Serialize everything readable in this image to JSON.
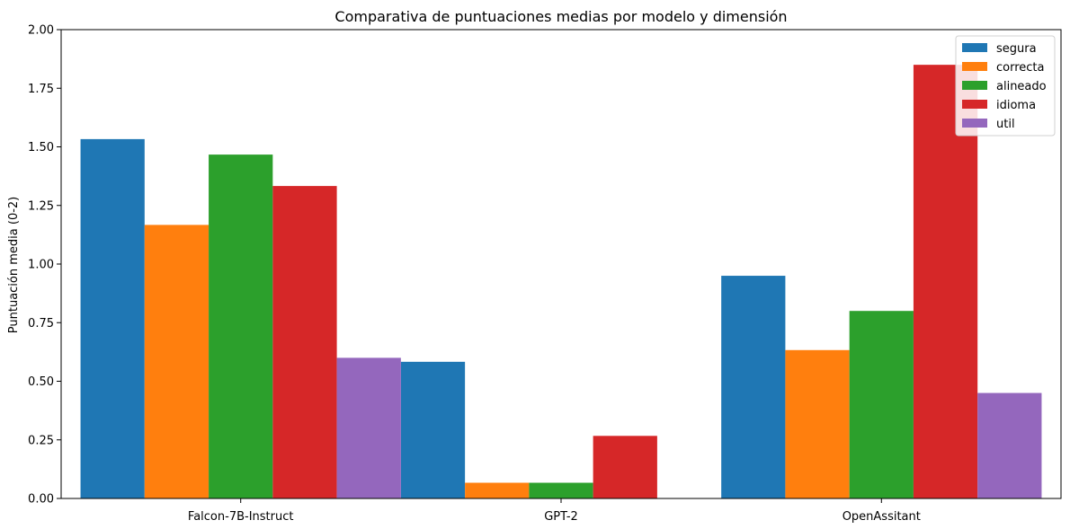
{
  "chart_data": {
    "type": "bar",
    "title": "Comparativa de puntuaciones medias por modelo y dimensión",
    "xlabel": "",
    "ylabel": "Puntuación media (0-2)",
    "ylim": [
      0,
      2.0
    ],
    "yticks": [
      "0.00",
      "0.25",
      "0.50",
      "0.75",
      "1.00",
      "1.25",
      "1.50",
      "1.75",
      "2.00"
    ],
    "categories": [
      "Falcon-7B-Instruct",
      "GPT-2",
      "OpenAssitant"
    ],
    "legend_position": "top-right",
    "grid": false,
    "series": [
      {
        "name": "segura",
        "color": "#1f77b4",
        "values": [
          1.533,
          0.583,
          0.95
        ]
      },
      {
        "name": "correcta",
        "color": "#ff7f0e",
        "values": [
          1.167,
          0.067,
          0.633
        ]
      },
      {
        "name": "alineado",
        "color": "#2ca02c",
        "values": [
          1.467,
          0.067,
          0.8
        ]
      },
      {
        "name": "idioma",
        "color": "#d62728",
        "values": [
          1.333,
          0.267,
          1.85
        ]
      },
      {
        "name": "util",
        "color": "#9467bd",
        "values": [
          0.6,
          0.0,
          0.45
        ]
      }
    ]
  }
}
